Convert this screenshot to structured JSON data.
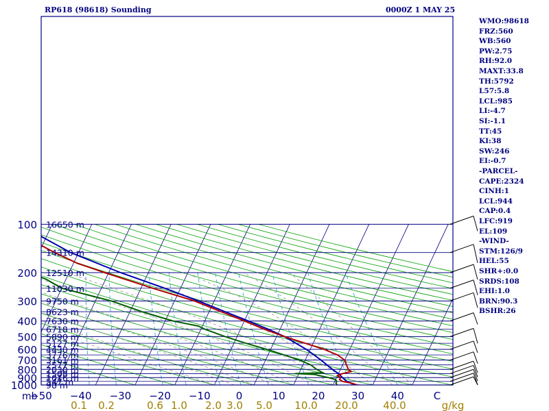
{
  "chart_data": {
    "type": "line",
    "title": "RP618 (98618) Sounding",
    "subtitle": "0000Z  1 MAY 25",
    "pressure_labels": [
      "100",
      "200",
      "300",
      "400",
      "500",
      "600",
      "700",
      "800",
      "900",
      "1000"
    ],
    "height_labels": [
      {
        "p": 100,
        "h": "16650 m"
      },
      {
        "p": 150,
        "h": "14310 m"
      },
      {
        "p": 200,
        "h": "12510 m"
      },
      {
        "p": 250,
        "h": "11030 m"
      },
      {
        "p": 300,
        "h": "9750 m"
      },
      {
        "p": 350,
        "h": "8623 m"
      },
      {
        "p": 400,
        "h": "7630 m"
      },
      {
        "p": 450,
        "h": "6718 m"
      },
      {
        "p": 500,
        "h": "5890 m"
      },
      {
        "p": 550,
        "h": "5127 m"
      },
      {
        "p": 600,
        "h": "4430 m"
      },
      {
        "p": 650,
        "h": "3776 m"
      },
      {
        "p": 700,
        "h": "3161 m"
      },
      {
        "p": 750,
        "h": "2577 m"
      },
      {
        "p": 800,
        "h": "2030 m"
      },
      {
        "p": 850,
        "h": "1508 m"
      },
      {
        "p": 900,
        "h": "1016 m"
      },
      {
        "p": 950,
        "h": "547 m"
      },
      {
        "p": 1000,
        "h": "98 m"
      }
    ],
    "x_unit_label": "mb",
    "x_ticks": [
      "-50",
      "-40",
      "-30",
      "-20",
      "-10",
      "0",
      "10",
      "20",
      "30",
      "40",
      "C"
    ],
    "mixing_ratio_ticks": [
      "0.1",
      "0.2",
      "0.6",
      "1.0",
      "2.0",
      "3.0",
      "5.0",
      "10.0",
      "20.0",
      "40.0",
      "g/kg"
    ],
    "temperature": [
      [
        1005,
        27
      ],
      [
        1000,
        26
      ],
      [
        975,
        24.5
      ],
      [
        950,
        22
      ],
      [
        925,
        21
      ],
      [
        900,
        21
      ],
      [
        875,
        20
      ],
      [
        850,
        21
      ],
      [
        825,
        23
      ],
      [
        800,
        22
      ],
      [
        750,
        21
      ],
      [
        700,
        20
      ],
      [
        650,
        17.5
      ],
      [
        600,
        13.5
      ],
      [
        550,
        8
      ],
      [
        500,
        2
      ],
      [
        450,
        -4
      ],
      [
        400,
        -10
      ],
      [
        350,
        -17
      ],
      [
        300,
        -25
      ],
      [
        250,
        -37
      ],
      [
        200,
        -51
      ],
      [
        175,
        -59
      ],
      [
        150,
        -66
      ],
      [
        130,
        -72
      ],
      [
        120,
        -75
      ],
      [
        110,
        -77
      ],
      [
        105,
        -76
      ],
      [
        100,
        -73
      ]
    ],
    "dewpoint": [
      [
        1005,
        21
      ],
      [
        1000,
        21
      ],
      [
        975,
        20.5
      ],
      [
        950,
        20.5
      ],
      [
        925,
        20
      ],
      [
        900,
        18
      ],
      [
        860,
        14
      ],
      [
        850,
        9
      ],
      [
        840,
        16
      ],
      [
        800,
        14
      ],
      [
        750,
        12
      ],
      [
        700,
        8.5
      ],
      [
        650,
        4
      ],
      [
        600,
        -1
      ],
      [
        550,
        -7
      ],
      [
        500,
        -13
      ],
      [
        450,
        -19
      ],
      [
        430,
        -21
      ],
      [
        400,
        -28
      ],
      [
        350,
        -37
      ],
      [
        300,
        -46
      ],
      [
        250,
        -60
      ],
      [
        220,
        -65
      ],
      [
        200,
        -70
      ],
      [
        175,
        -77
      ],
      [
        150,
        -84
      ],
      [
        135,
        -89
      ],
      [
        120,
        -92
      ],
      [
        110,
        -92
      ],
      [
        105,
        -90
      ],
      [
        100,
        -86
      ]
    ],
    "parcel": [
      [
        1005,
        26
      ],
      [
        950,
        23
      ],
      [
        900,
        21.5
      ],
      [
        850,
        20
      ],
      [
        800,
        18
      ],
      [
        700,
        14
      ],
      [
        600,
        9
      ],
      [
        500,
        2
      ],
      [
        450,
        -3
      ],
      [
        400,
        -9
      ],
      [
        350,
        -16
      ],
      [
        300,
        -24
      ],
      [
        250,
        -34
      ],
      [
        200,
        -47
      ],
      [
        150,
        -62
      ],
      [
        120,
        -71
      ],
      [
        110,
        -74
      ]
    ],
    "indices": [
      "WMO:98618",
      "FRZ:560",
      "WB:560",
      "PW:2.75",
      "RH:92.0",
      "MAXT:33.8",
      "TH:5792",
      "L57:5.8",
      "LCL:985",
      "LI:-4.7",
      "SI:-1.1",
      "TT:45",
      "KI:38",
      "SW:246",
      "EI:-0.7",
      "-PARCEL-",
      "CAPE:2324",
      "CINH:1",
      "LCL:944",
      "CAP:0.4",
      "LFC:919",
      "EL:109",
      "-WIND-",
      "STM:126/9",
      "HEL:55",
      "SHR+:0.0",
      "SRDS:108",
      "EHI:1.0",
      "BRN:90.3",
      "BSHR:26"
    ],
    "colors": {
      "axis": "#000080",
      "temperature": "#b00000",
      "dewpoint": "#006000",
      "parcel": "#0000b0",
      "adiabat": "#00a000",
      "isotherm": "#000080",
      "mixing": "#30a0d0",
      "moist": "#909090"
    }
  }
}
